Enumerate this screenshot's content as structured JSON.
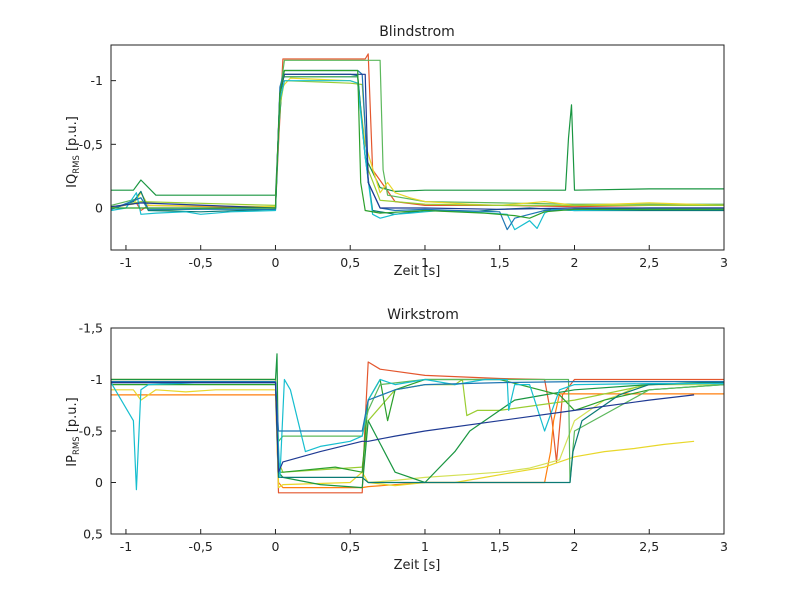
{
  "chart_data": [
    {
      "type": "line",
      "title": "Blindstrom",
      "xlabel": "Zeit [s]",
      "ylabel_main": "IQ",
      "ylabel_sub": "RMS",
      "ylabel_tail": " [p.u.]",
      "xlim": [
        -1.1,
        3
      ],
      "ylim": [
        -1.28,
        0.33
      ],
      "y_reversed": true,
      "grid": false,
      "xticks": [
        {
          "value": -1,
          "label": "-1"
        },
        {
          "value": -0.5,
          "label": "-0,5"
        },
        {
          "value": 0,
          "label": "0"
        },
        {
          "value": 0.5,
          "label": "0,5"
        },
        {
          "value": 1,
          "label": "1"
        },
        {
          "value": 1.5,
          "label": "1,5"
        },
        {
          "value": 2,
          "label": "2"
        },
        {
          "value": 2.5,
          "label": "2,5"
        },
        {
          "value": 3,
          "label": "3"
        }
      ],
      "yticks": [
        {
          "value": -1,
          "label": "-1"
        },
        {
          "value": -0.5,
          "label": "-0,5"
        },
        {
          "value": 0,
          "label": "0"
        }
      ],
      "series": [
        {
          "color": "#e4572e",
          "x": [
            -1.1,
            -0.93,
            -0.9,
            -0.85,
            0,
            0.02,
            0.05,
            0.6,
            0.62,
            0.65,
            0.8,
            1,
            1.5,
            2,
            2.5,
            3
          ],
          "y": [
            0,
            -0.04,
            0.02,
            -0.02,
            0,
            -0.5,
            -1.17,
            -1.17,
            -1.21,
            -0.3,
            -0.05,
            -0.02,
            -0.02,
            -0.01,
            -0.02,
            -0.02
          ]
        },
        {
          "color": "#1a9641",
          "x": [
            -1.1,
            -0.95,
            -0.9,
            -0.8,
            0,
            0.02,
            0.05,
            0.55,
            0.6,
            0.7,
            0.8,
            1,
            1.5,
            1.94,
            1.96,
            1.98,
            2,
            2.5,
            3
          ],
          "y": [
            -0.14,
            -0.14,
            -0.22,
            -0.1,
            -0.1,
            -0.6,
            -1.03,
            -1.03,
            -0.4,
            -0.16,
            -0.13,
            -0.14,
            -0.14,
            -0.14,
            -0.55,
            -0.81,
            -0.14,
            -0.15,
            -0.15
          ]
        },
        {
          "color": "#5cb85c",
          "x": [
            -1.1,
            -0.9,
            -0.85,
            0,
            0.03,
            0.06,
            0.7,
            0.72,
            0.75,
            1,
            1.5,
            2,
            2.5,
            3
          ],
          "y": [
            -0.02,
            -0.08,
            0.02,
            -0.01,
            -0.9,
            -1.16,
            -1.16,
            -0.3,
            -0.1,
            -0.05,
            -0.04,
            -0.03,
            -0.03,
            -0.03
          ]
        },
        {
          "color": "#e8d72a",
          "x": [
            -1.1,
            -0.95,
            -0.9,
            -0.85,
            0,
            0.03,
            0.06,
            0.1,
            0.5,
            0.55,
            0.6,
            0.7,
            0.75,
            0.8,
            0.9,
            1,
            1.3,
            1.5,
            1.8,
            2,
            2.5,
            3
          ],
          "y": [
            -0.01,
            -0.03,
            -0.12,
            -0.02,
            -0.01,
            -0.9,
            -0.97,
            -1.02,
            -1.0,
            -0.98,
            -0.5,
            -0.12,
            -0.2,
            -0.12,
            -0.08,
            -0.05,
            -0.03,
            -0.02,
            -0.05,
            -0.02,
            -0.04,
            -0.02
          ]
        },
        {
          "color": "#9acd32",
          "x": [
            -1.1,
            -0.9,
            0,
            0.03,
            0.06,
            0.5,
            0.58,
            0.62,
            0.7,
            1,
            1.5,
            2,
            2.5,
            3
          ],
          "y": [
            0,
            -0.05,
            -0.02,
            -0.8,
            -1.0,
            -0.98,
            -0.97,
            -0.3,
            -0.06,
            -0.03,
            -0.02,
            -0.02,
            -0.02,
            -0.02
          ]
        },
        {
          "color": "#0b7a75",
          "x": [
            -1.1,
            -0.95,
            -0.9,
            -0.85,
            -0.5,
            0,
            0.03,
            0.06,
            0.5,
            0.55,
            0.6,
            0.65,
            0.8,
            1,
            1.3,
            1.5,
            1.7,
            2,
            2.5,
            3
          ],
          "y": [
            0.01,
            -0.05,
            -0.13,
            0.02,
            0.03,
            0.01,
            -0.9,
            -1.05,
            -1.05,
            -1.04,
            -0.4,
            0.02,
            0.05,
            0.02,
            0.03,
            0.01,
            0.0,
            0.02,
            0.02,
            0.02
          ]
        },
        {
          "color": "#17becf",
          "x": [
            -1.1,
            -1,
            -0.93,
            -0.9,
            -0.8,
            -0.6,
            -0.5,
            -0.3,
            0,
            0.03,
            0.06,
            0.5,
            0.55,
            0.6,
            0.65,
            0.7,
            0.8,
            0.9,
            1,
            1.1,
            1.3,
            1.55,
            1.6,
            1.7,
            1.75,
            1.8,
            1.85,
            2,
            2.5,
            3
          ],
          "y": [
            0.02,
            0.0,
            -0.12,
            0.05,
            0.04,
            0.03,
            0.05,
            0.03,
            0.02,
            -0.85,
            -1.0,
            -1.0,
            -0.98,
            -0.4,
            0.05,
            0.08,
            0.05,
            0.04,
            0.03,
            0.02,
            0.03,
            0.05,
            0.17,
            0.1,
            0.16,
            0.04,
            0.01,
            0.02,
            0.01,
            0.01
          ]
        },
        {
          "color": "#1f77b4",
          "x": [
            -1.1,
            -0.9,
            -0.85,
            0,
            0.03,
            0.06,
            0.55,
            0.58,
            0.62,
            0.7,
            0.8,
            1,
            1.2,
            1.5,
            1.55,
            1.6,
            1.7,
            1.8,
            2,
            2.5,
            3
          ],
          "y": [
            0.01,
            -0.08,
            0.01,
            0.01,
            -0.95,
            -1.08,
            -1.08,
            -1.05,
            -0.2,
            0.0,
            0.02,
            0.01,
            0.02,
            0.03,
            0.17,
            0.08,
            0.05,
            0.02,
            0.01,
            0.0,
            0.0
          ]
        },
        {
          "color": "#1f3a93",
          "x": [
            -1.1,
            -0.9,
            0,
            0.03,
            0.06,
            0.6,
            0.62,
            0.7,
            1,
            1.5,
            2,
            2.5,
            3
          ],
          "y": [
            -0.01,
            -0.04,
            0,
            -0.9,
            -1.05,
            -1.05,
            -0.2,
            0.0,
            0.0,
            0.01,
            0.0,
            0.0,
            0.0
          ]
        },
        {
          "color": "#2ca02c",
          "x": [
            -1.1,
            -0.9,
            0,
            0.03,
            0.06,
            0.55,
            0.57,
            0.6,
            0.7,
            1,
            1.4,
            1.6,
            1.7,
            1.8,
            2,
            2.5,
            3
          ],
          "y": [
            0,
            0,
            0,
            -0.9,
            -1.08,
            -1.08,
            -0.2,
            0.02,
            0.04,
            0.02,
            0.04,
            0.06,
            0.08,
            0.03,
            0.01,
            0.01,
            0.01
          ]
        }
      ]
    },
    {
      "type": "line",
      "title": "Wirkstrom",
      "xlabel": "Zeit [s]",
      "ylabel_main": "IP",
      "ylabel_sub": "RMS",
      "ylabel_tail": " [p.u.]",
      "xlim": [
        -1.1,
        3
      ],
      "ylim": [
        -1.5,
        0.5
      ],
      "y_reversed": true,
      "grid": false,
      "xticks": [
        {
          "value": -1,
          "label": "-1"
        },
        {
          "value": -0.5,
          "label": "-0,5"
        },
        {
          "value": 0,
          "label": "0"
        },
        {
          "value": 0.5,
          "label": "0,5"
        },
        {
          "value": 1,
          "label": "1"
        },
        {
          "value": 1.5,
          "label": "1,5"
        },
        {
          "value": 2,
          "label": "2"
        },
        {
          "value": 2.5,
          "label": "2,5"
        },
        {
          "value": 3,
          "label": "3"
        }
      ],
      "yticks": [
        {
          "value": -1.5,
          "label": "-1,5"
        },
        {
          "value": -1,
          "label": "-1"
        },
        {
          "value": -0.5,
          "label": "-0,5"
        },
        {
          "value": 0,
          "label": "0"
        },
        {
          "value": 0.5,
          "label": "0,5"
        }
      ],
      "series": [
        {
          "color": "#e4572e",
          "x": [
            -1.1,
            0,
            0.02,
            0.05,
            0.58,
            0.6,
            0.62,
            0.7,
            1,
            1.5,
            1.8,
            1.85,
            1.88,
            1.92,
            2,
            2.5,
            3
          ],
          "y": [
            -1.0,
            -1.0,
            0.1,
            0.1,
            0.1,
            -0.6,
            -1.17,
            -1.1,
            -1.04,
            -1.01,
            -1.0,
            -0.6,
            -0.2,
            -0.85,
            -1.0,
            -1.0,
            -1.0
          ]
        },
        {
          "color": "#ff7f0e",
          "x": [
            -1.1,
            0,
            0.02,
            0.05,
            0.58,
            0.62,
            1,
            1.5,
            1.8,
            1.84,
            1.86,
            1.9,
            2,
            2.5,
            3
          ],
          "y": [
            -0.85,
            -0.85,
            0.0,
            0.05,
            0.05,
            0.04,
            0.0,
            0.0,
            0.0,
            -0.3,
            -0.6,
            -0.86,
            -0.86,
            -0.86,
            -0.86
          ]
        },
        {
          "color": "#e8d72a",
          "x": [
            -1.1,
            -0.95,
            -0.9,
            -0.8,
            -0.6,
            -0.4,
            0,
            0.02,
            0.05,
            0.5,
            0.58,
            0.62,
            0.8,
            1,
            1.2,
            1.4,
            1.6,
            1.8,
            1.9,
            2,
            2.2,
            2.4,
            2.6,
            2.8
          ],
          "y": [
            -0.9,
            -0.9,
            -0.8,
            -0.9,
            -0.88,
            -0.9,
            -0.9,
            0.05,
            0.02,
            0.0,
            -0.1,
            0.0,
            0.03,
            0.0,
            0.0,
            -0.05,
            -0.1,
            -0.15,
            -0.2,
            -0.25,
            -0.3,
            -0.33,
            -0.37,
            -0.4
          ]
        },
        {
          "color": "#d4e157",
          "x": [
            0.62,
            0.8,
            1,
            1.3,
            1.5,
            1.7,
            1.9,
            2,
            2.1,
            2.2,
            2.3,
            2.4,
            2.5,
            3
          ],
          "y": [
            0.0,
            -0.02,
            -0.05,
            -0.08,
            -0.1,
            -0.14,
            -0.22,
            -0.6,
            -0.7,
            -0.8,
            -0.85,
            -0.92,
            -0.95,
            -0.95
          ]
        },
        {
          "color": "#9acd32",
          "x": [
            -1.1,
            0,
            0.02,
            0.05,
            0.58,
            0.62,
            0.8,
            1,
            1.2,
            1.25,
            1.28,
            1.35,
            1.5,
            2,
            2.5,
            3
          ],
          "y": [
            -1.0,
            -1.0,
            -0.2,
            -0.1,
            -0.15,
            -0.6,
            -0.9,
            -0.95,
            -0.95,
            -1.0,
            -0.65,
            -0.7,
            -0.7,
            -0.8,
            -0.95,
            -0.97
          ]
        },
        {
          "color": "#1a9641",
          "x": [
            -1.1,
            0,
            0.01,
            0.02,
            0.05,
            0.3,
            0.58,
            0.62,
            0.8,
            1,
            1.2,
            1.3,
            1.5,
            1.6,
            1.8,
            2,
            2.5,
            3
          ],
          "y": [
            -1.0,
            -1.0,
            -1.25,
            -0.1,
            -0.05,
            0.02,
            0.05,
            -0.6,
            -0.1,
            0.0,
            -0.3,
            -0.5,
            -0.7,
            -0.8,
            -0.85,
            -0.9,
            -0.95,
            -0.98
          ]
        },
        {
          "color": "#2ca02c",
          "x": [
            -1.1,
            0,
            0.02,
            0.05,
            0.4,
            0.58,
            0.62,
            0.7,
            0.75,
            0.8,
            1,
            1.5,
            1.9,
            2.0,
            2.2,
            2.5,
            3
          ],
          "y": [
            -0.95,
            -0.95,
            -0.1,
            -0.1,
            -0.15,
            -0.1,
            -0.8,
            -1.0,
            -0.6,
            -0.9,
            -1.0,
            -1.0,
            -0.85,
            -0.7,
            -0.8,
            -0.9,
            -0.95
          ]
        },
        {
          "color": "#5cb85c",
          "x": [
            -1.1,
            0,
            0.02,
            0.05,
            0.58,
            0.62,
            0.7,
            1,
            1.5,
            1.96,
            1.97,
            2,
            2.5,
            3
          ],
          "y": [
            -0.98,
            -0.98,
            -0.4,
            -0.45,
            -0.45,
            -0.7,
            -0.95,
            -1.0,
            -1.0,
            -1.0,
            0.0,
            -0.5,
            -0.9,
            -0.95
          ]
        },
        {
          "color": "#0b7a75",
          "x": [
            -1.1,
            0,
            0.02,
            0.05,
            0.58,
            0.62,
            0.7,
            0.8,
            1,
            1.5,
            1.97,
            1.99,
            2.05,
            2.3,
            2.5,
            3
          ],
          "y": [
            -0.97,
            -0.97,
            -0.05,
            -0.05,
            -0.05,
            0.0,
            0.0,
            0.0,
            0.0,
            0.0,
            0.0,
            -0.3,
            -0.6,
            -0.85,
            -0.95,
            -0.97
          ]
        },
        {
          "color": "#17becf",
          "x": [
            -1.1,
            -0.95,
            -0.93,
            -0.9,
            -0.85,
            -0.5,
            0,
            0.03,
            0.06,
            0.1,
            0.15,
            0.2,
            0.3,
            0.5,
            0.58,
            0.62,
            0.7,
            0.8,
            1,
            1.2,
            1.4,
            1.55,
            1.56,
            1.6,
            1.7,
            1.8,
            1.9,
            2,
            2.5,
            3
          ],
          "y": [
            -0.97,
            -0.6,
            0.07,
            -0.9,
            -0.95,
            -0.97,
            -0.97,
            -0.05,
            -1.0,
            -0.9,
            -0.6,
            -0.3,
            -0.35,
            -0.4,
            -0.45,
            -0.8,
            -1.0,
            -0.95,
            -1.0,
            -0.95,
            -1.0,
            -1.0,
            -0.7,
            -0.95,
            -0.95,
            -0.5,
            -0.9,
            -0.95,
            -0.96,
            -0.96
          ]
        },
        {
          "color": "#1f77b4",
          "x": [
            -1.1,
            0,
            0.02,
            0.05,
            0.58,
            0.62,
            0.8,
            1,
            1.5,
            2,
            2.5,
            3
          ],
          "y": [
            -0.98,
            -0.98,
            -0.5,
            -0.5,
            -0.5,
            -0.8,
            -0.9,
            -0.95,
            -0.97,
            -0.98,
            -0.98,
            -0.98
          ]
        },
        {
          "color": "#1f3a93",
          "x": [
            -1.1,
            0,
            0.02,
            0.05,
            0.3,
            0.58,
            0.62,
            0.8,
            1,
            1.5,
            2,
            2.5,
            2.8
          ],
          "y": [
            -0.97,
            -0.97,
            -0.1,
            -0.2,
            -0.3,
            -0.4,
            -0.4,
            -0.45,
            -0.5,
            -0.6,
            -0.7,
            -0.8,
            -0.85
          ]
        }
      ]
    }
  ]
}
